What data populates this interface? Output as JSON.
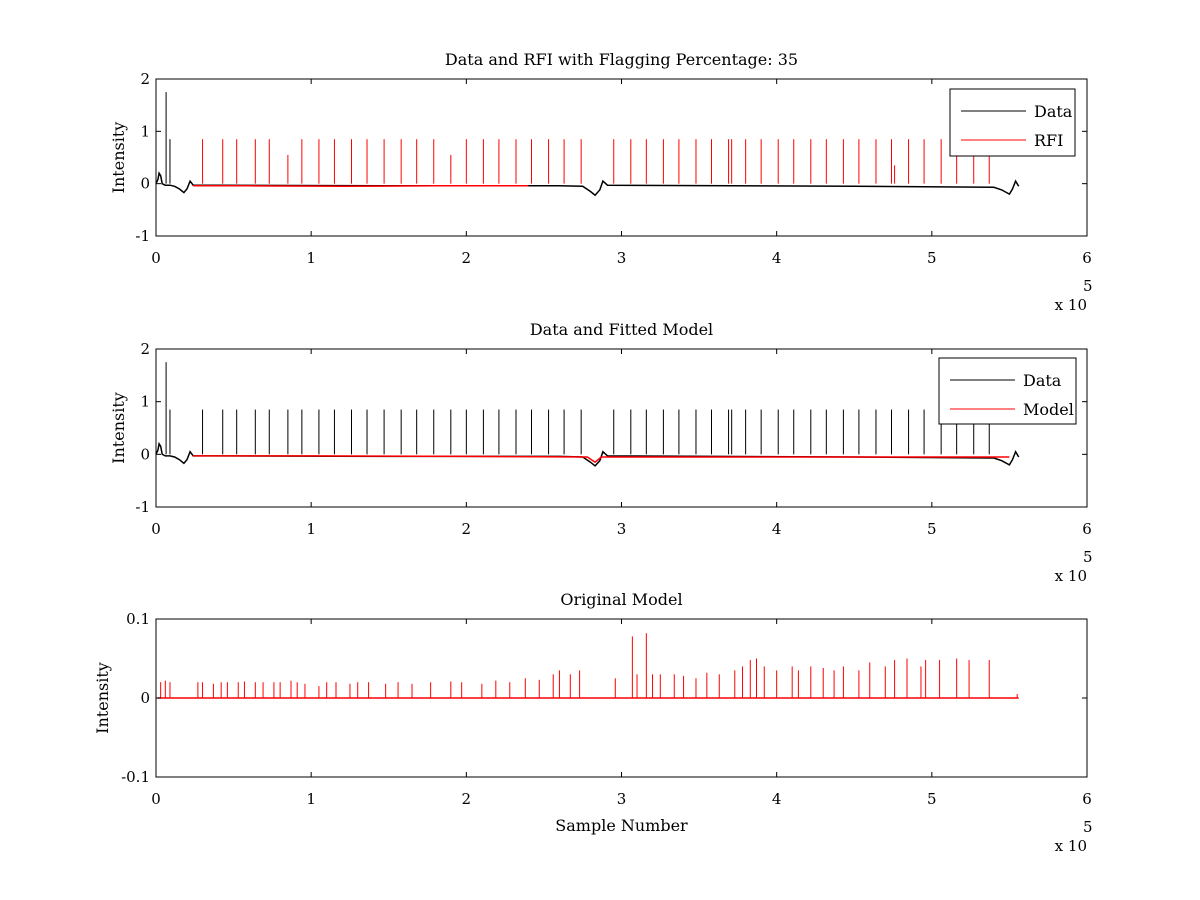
{
  "chart_data": [
    {
      "type": "line",
      "title": "Data and RFI with Flagging Percentage: 35",
      "xlabel": "",
      "ylabel": "Intensity",
      "xlim": [
        0,
        6
      ],
      "ylim": [
        -1,
        2
      ],
      "xticks": [
        "0",
        "1",
        "2",
        "3",
        "4",
        "5",
        "6"
      ],
      "yticks": [
        "-1",
        "0",
        "1",
        "2"
      ],
      "x_multiplier_text": "x 10",
      "x_multiplier_exp": "5",
      "legend_position": "top-right",
      "series": [
        {
          "name": "Data",
          "color": "#000000",
          "points": [
            [
              0,
              0
            ],
            [
              0.012,
              0.08
            ],
            [
              0.02,
              0.2
            ],
            [
              0.03,
              0.15
            ],
            [
              0.04,
              0.0
            ],
            [
              0.06,
              -0.03
            ],
            [
              0.09,
              -0.03
            ],
            [
              0.12,
              -0.05
            ],
            [
              0.15,
              -0.1
            ],
            [
              0.18,
              -0.17
            ],
            [
              0.2,
              -0.1
            ],
            [
              0.22,
              0.05
            ],
            [
              0.24,
              -0.03
            ],
            [
              0.4,
              -0.03
            ],
            [
              1.5,
              -0.04
            ],
            [
              2.6,
              -0.04
            ],
            [
              2.75,
              -0.05
            ],
            [
              2.8,
              -0.15
            ],
            [
              2.83,
              -0.22
            ],
            [
              2.86,
              -0.12
            ],
            [
              2.88,
              0.05
            ],
            [
              2.91,
              -0.03
            ],
            [
              4.5,
              -0.05
            ],
            [
              5.4,
              -0.07
            ],
            [
              5.45,
              -0.12
            ],
            [
              5.5,
              -0.2
            ],
            [
              5.52,
              -0.1
            ],
            [
              5.54,
              0.05
            ],
            [
              5.56,
              -0.05
            ]
          ],
          "spikes": [
            [
              0.065,
              1.75
            ],
            [
              0.09,
              0.85
            ]
          ]
        },
        {
          "name": "RFI",
          "color": "#ff0000",
          "points": [
            [
              0.24,
              -0.04
            ],
            [
              0.6,
              -0.04
            ],
            [
              1.2,
              -0.05
            ],
            [
              1.8,
              -0.04
            ],
            [
              2.4,
              -0.04
            ]
          ],
          "spikes": [
            [
              0.3,
              0.85
            ],
            [
              0.43,
              0.85
            ],
            [
              0.52,
              0.85
            ],
            [
              0.64,
              0.85
            ],
            [
              0.73,
              0.85
            ],
            [
              0.85,
              0.55
            ],
            [
              0.94,
              0.85
            ],
            [
              1.05,
              0.85
            ],
            [
              1.15,
              0.85
            ],
            [
              1.26,
              0.85
            ],
            [
              1.36,
              0.85
            ],
            [
              1.47,
              0.85
            ],
            [
              1.58,
              0.85
            ],
            [
              1.68,
              0.85
            ],
            [
              1.79,
              0.85
            ],
            [
              1.9,
              0.55
            ],
            [
              2.0,
              0.85
            ],
            [
              2.11,
              0.85
            ],
            [
              2.21,
              0.85
            ],
            [
              2.32,
              0.85
            ],
            [
              2.42,
              0.85
            ],
            [
              2.53,
              0.85
            ],
            [
              2.63,
              0.85
            ],
            [
              2.74,
              0.85
            ],
            [
              2.95,
              0.85
            ],
            [
              3.06,
              0.85
            ],
            [
              3.16,
              0.85
            ],
            [
              3.27,
              0.85
            ],
            [
              3.37,
              0.85
            ],
            [
              3.48,
              0.85
            ],
            [
              3.58,
              0.85
            ],
            [
              3.69,
              0.85
            ],
            [
              3.71,
              0.85
            ],
            [
              3.8,
              0.85
            ],
            [
              3.9,
              0.85
            ],
            [
              4.01,
              0.85
            ],
            [
              4.11,
              0.85
            ],
            [
              4.22,
              0.85
            ],
            [
              4.32,
              0.85
            ],
            [
              4.43,
              0.85
            ],
            [
              4.53,
              0.85
            ],
            [
              4.64,
              0.85
            ],
            [
              4.74,
              0.85
            ],
            [
              4.76,
              0.35
            ],
            [
              4.85,
              0.85
            ],
            [
              4.95,
              0.85
            ],
            [
              5.06,
              0.85
            ],
            [
              5.16,
              0.85
            ],
            [
              5.27,
              0.85
            ],
            [
              5.37,
              0.85
            ]
          ]
        }
      ]
    },
    {
      "type": "line",
      "title": "Data and Fitted Model",
      "xlabel": "",
      "ylabel": "Intensity",
      "xlim": [
        0,
        6
      ],
      "ylim": [
        -1,
        2
      ],
      "xticks": [
        "0",
        "1",
        "2",
        "3",
        "4",
        "5",
        "6"
      ],
      "yticks": [
        "-1",
        "0",
        "1",
        "2"
      ],
      "x_multiplier_text": "x 10",
      "x_multiplier_exp": "5",
      "legend_position": "top-right",
      "series": [
        {
          "name": "Data",
          "color": "#000000",
          "points": [
            [
              0,
              0
            ],
            [
              0.012,
              0.08
            ],
            [
              0.02,
              0.2
            ],
            [
              0.03,
              0.15
            ],
            [
              0.04,
              0.0
            ],
            [
              0.06,
              -0.03
            ],
            [
              0.09,
              -0.03
            ],
            [
              0.12,
              -0.05
            ],
            [
              0.15,
              -0.1
            ],
            [
              0.18,
              -0.17
            ],
            [
              0.2,
              -0.1
            ],
            [
              0.22,
              0.05
            ],
            [
              0.24,
              -0.03
            ],
            [
              0.4,
              -0.03
            ],
            [
              1.5,
              -0.04
            ],
            [
              2.6,
              -0.04
            ],
            [
              2.75,
              -0.05
            ],
            [
              2.8,
              -0.15
            ],
            [
              2.83,
              -0.22
            ],
            [
              2.86,
              -0.12
            ],
            [
              2.88,
              0.05
            ],
            [
              2.91,
              -0.03
            ],
            [
              4.5,
              -0.05
            ],
            [
              5.4,
              -0.07
            ],
            [
              5.45,
              -0.12
            ],
            [
              5.5,
              -0.2
            ],
            [
              5.52,
              -0.1
            ],
            [
              5.54,
              0.05
            ],
            [
              5.56,
              -0.05
            ]
          ],
          "spikes": [
            [
              0.065,
              1.75
            ],
            [
              0.09,
              0.85
            ],
            [
              0.3,
              0.85
            ],
            [
              0.43,
              0.85
            ],
            [
              0.52,
              0.85
            ],
            [
              0.64,
              0.85
            ],
            [
              0.73,
              0.85
            ],
            [
              0.85,
              0.85
            ],
            [
              0.94,
              0.85
            ],
            [
              1.05,
              0.85
            ],
            [
              1.15,
              0.85
            ],
            [
              1.26,
              0.85
            ],
            [
              1.36,
              0.85
            ],
            [
              1.47,
              0.85
            ],
            [
              1.58,
              0.85
            ],
            [
              1.68,
              0.85
            ],
            [
              1.79,
              0.85
            ],
            [
              1.9,
              0.85
            ],
            [
              2.0,
              0.85
            ],
            [
              2.11,
              0.85
            ],
            [
              2.21,
              0.85
            ],
            [
              2.32,
              0.85
            ],
            [
              2.42,
              0.85
            ],
            [
              2.53,
              0.85
            ],
            [
              2.63,
              0.85
            ],
            [
              2.74,
              0.85
            ],
            [
              2.95,
              0.85
            ],
            [
              3.06,
              0.85
            ],
            [
              3.16,
              0.85
            ],
            [
              3.27,
              0.85
            ],
            [
              3.37,
              0.85
            ],
            [
              3.48,
              0.85
            ],
            [
              3.58,
              0.85
            ],
            [
              3.69,
              0.85
            ],
            [
              3.71,
              0.85
            ],
            [
              3.8,
              0.85
            ],
            [
              3.9,
              0.85
            ],
            [
              4.01,
              0.85
            ],
            [
              4.11,
              0.85
            ],
            [
              4.22,
              0.85
            ],
            [
              4.32,
              0.85
            ],
            [
              4.43,
              0.85
            ],
            [
              4.53,
              0.85
            ],
            [
              4.64,
              0.85
            ],
            [
              4.74,
              0.85
            ],
            [
              4.85,
              0.85
            ],
            [
              4.95,
              0.85
            ],
            [
              5.06,
              0.85
            ],
            [
              5.16,
              0.85
            ],
            [
              5.27,
              0.85
            ],
            [
              5.37,
              0.85
            ]
          ]
        },
        {
          "name": "Model",
          "color": "#ff0000",
          "points": [
            [
              0.24,
              -0.03
            ],
            [
              1.0,
              -0.03
            ],
            [
              2.0,
              -0.04
            ],
            [
              2.78,
              -0.05
            ],
            [
              2.83,
              -0.15
            ],
            [
              2.87,
              -0.05
            ],
            [
              4.0,
              -0.05
            ],
            [
              5.5,
              -0.05
            ]
          ],
          "spikes": []
        }
      ]
    },
    {
      "type": "line",
      "title": "Original Model",
      "xlabel": "Sample Number",
      "ylabel": "Intensity",
      "xlim": [
        0,
        6
      ],
      "ylim": [
        -0.1,
        0.1
      ],
      "xticks": [
        "0",
        "1",
        "2",
        "3",
        "4",
        "5",
        "6"
      ],
      "yticks": [
        "-0.1",
        "0",
        "0.1"
      ],
      "x_multiplier_text": "x 10",
      "x_multiplier_exp": "5",
      "legend_position": "none",
      "series": [
        {
          "color": "#ff0000",
          "points": [
            [
              0.01,
              0
            ],
            [
              5.56,
              0
            ]
          ],
          "spikes": [
            [
              0.03,
              0.02
            ],
            [
              0.06,
              0.022
            ],
            [
              0.09,
              0.02
            ],
            [
              0.27,
              0.02
            ],
            [
              0.3,
              0.02
            ],
            [
              0.37,
              0.018
            ],
            [
              0.42,
              0.02
            ],
            [
              0.46,
              0.02
            ],
            [
              0.53,
              0.02
            ],
            [
              0.57,
              0.021
            ],
            [
              0.64,
              0.02
            ],
            [
              0.69,
              0.02
            ],
            [
              0.76,
              0.02
            ],
            [
              0.8,
              0.02
            ],
            [
              0.87,
              0.022
            ],
            [
              0.91,
              0.02
            ],
            [
              0.96,
              0.018
            ],
            [
              1.05,
              0.015
            ],
            [
              1.1,
              0.02
            ],
            [
              1.16,
              0.02
            ],
            [
              1.25,
              0.018
            ],
            [
              1.3,
              0.02
            ],
            [
              1.37,
              0.02
            ],
            [
              1.48,
              0.018
            ],
            [
              1.56,
              0.02
            ],
            [
              1.65,
              0.018
            ],
            [
              1.77,
              0.02
            ],
            [
              1.9,
              0.021
            ],
            [
              1.97,
              0.02
            ],
            [
              2.1,
              0.018
            ],
            [
              2.19,
              0.022
            ],
            [
              2.28,
              0.02
            ],
            [
              2.38,
              0.025
            ],
            [
              2.47,
              0.023
            ],
            [
              2.56,
              0.03
            ],
            [
              2.6,
              0.035
            ],
            [
              2.67,
              0.03
            ],
            [
              2.73,
              0.035
            ],
            [
              2.96,
              0.025
            ],
            [
              3.07,
              0.078
            ],
            [
              3.1,
              0.03
            ],
            [
              3.16,
              0.082
            ],
            [
              3.2,
              0.03
            ],
            [
              3.25,
              0.03
            ],
            [
              3.34,
              0.03
            ],
            [
              3.4,
              0.028
            ],
            [
              3.48,
              0.025
            ],
            [
              3.55,
              0.032
            ],
            [
              3.63,
              0.03
            ],
            [
              3.73,
              0.035
            ],
            [
              3.78,
              0.04
            ],
            [
              3.83,
              0.048
            ],
            [
              3.87,
              0.05
            ],
            [
              3.92,
              0.04
            ],
            [
              4.0,
              0.035
            ],
            [
              4.1,
              0.04
            ],
            [
              4.14,
              0.035
            ],
            [
              4.22,
              0.04
            ],
            [
              4.3,
              0.038
            ],
            [
              4.37,
              0.035
            ],
            [
              4.43,
              0.04
            ],
            [
              4.53,
              0.035
            ],
            [
              4.6,
              0.045
            ],
            [
              4.7,
              0.04
            ],
            [
              4.76,
              0.048
            ],
            [
              4.84,
              0.05
            ],
            [
              4.93,
              0.04
            ],
            [
              4.96,
              0.048
            ],
            [
              5.05,
              0.048
            ],
            [
              5.16,
              0.05
            ],
            [
              5.24,
              0.048
            ],
            [
              5.37,
              0.048
            ],
            [
              5.55,
              0.005
            ]
          ]
        }
      ]
    }
  ]
}
